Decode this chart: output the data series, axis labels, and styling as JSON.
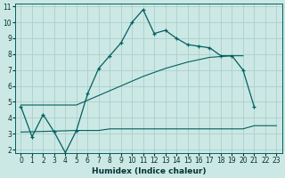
{
  "xlabel": "Humidex (Indice chaleur)",
  "bg_color": "#cce8e4",
  "grid_color": "#aacfcc",
  "line_color": "#006060",
  "xlim": [
    -0.5,
    23.5
  ],
  "ylim": [
    1.8,
    11.2
  ],
  "xticks": [
    0,
    1,
    2,
    3,
    4,
    5,
    6,
    7,
    8,
    9,
    10,
    11,
    12,
    13,
    14,
    15,
    16,
    17,
    18,
    19,
    20,
    21,
    22,
    23
  ],
  "yticks": [
    2,
    3,
    4,
    5,
    6,
    7,
    8,
    9,
    10,
    11
  ],
  "curve1_x": [
    0,
    1,
    2,
    3,
    4,
    5,
    6,
    7,
    8,
    9,
    10,
    11,
    12,
    13,
    14,
    15,
    16,
    17,
    18,
    19,
    20,
    21
  ],
  "curve1_y": [
    4.7,
    2.8,
    4.2,
    3.1,
    1.8,
    3.2,
    5.5,
    7.1,
    7.9,
    8.7,
    10.0,
    10.8,
    9.3,
    9.5,
    9.0,
    8.6,
    8.5,
    8.4,
    7.9,
    7.9,
    7.0,
    4.7
  ],
  "curve2_x": [
    0,
    5,
    6,
    7,
    8,
    9,
    10,
    11,
    12,
    13,
    14,
    15,
    16,
    17,
    18,
    19,
    20,
    21,
    22,
    23
  ],
  "curve2_y": [
    3.1,
    3.2,
    3.2,
    3.2,
    3.3,
    3.3,
    3.3,
    3.3,
    3.3,
    3.3,
    3.3,
    3.3,
    3.3,
    3.3,
    3.3,
    3.3,
    3.3,
    3.5,
    3.5,
    3.5
  ],
  "curve3_x": [
    0,
    5,
    6,
    7,
    8,
    9,
    10,
    11,
    12,
    13,
    14,
    15,
    16,
    17,
    18,
    19,
    20
  ],
  "curve3_y": [
    4.8,
    4.8,
    5.1,
    5.4,
    5.7,
    6.0,
    6.3,
    6.6,
    6.85,
    7.1,
    7.3,
    7.5,
    7.65,
    7.8,
    7.85,
    7.9,
    7.9
  ]
}
